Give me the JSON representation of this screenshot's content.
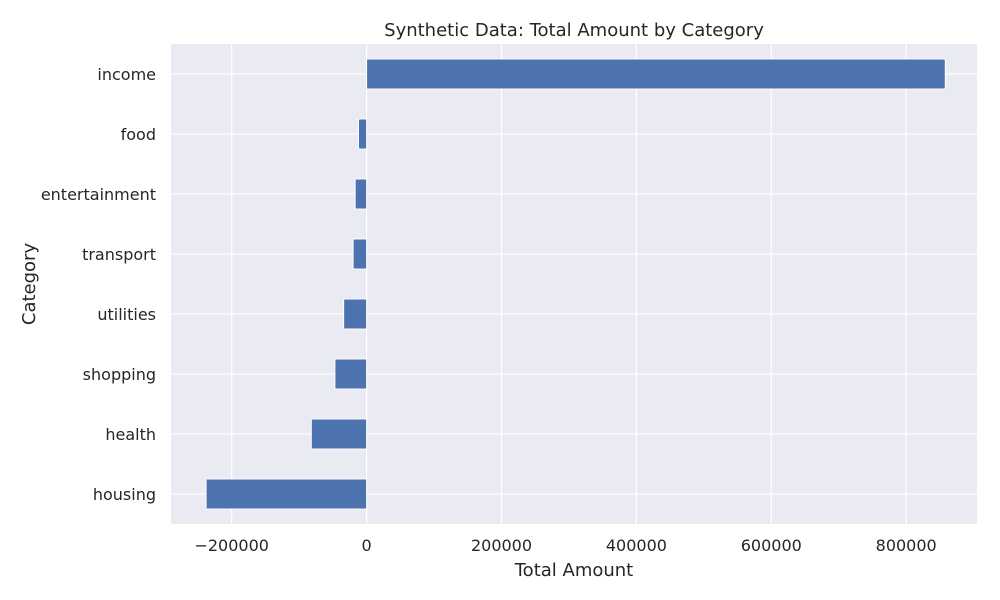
{
  "chart_data": {
    "type": "bar",
    "orientation": "horizontal",
    "title": "Synthetic Data: Total Amount by Category",
    "xlabel": "Total Amount",
    "ylabel": "Category",
    "categories": [
      "income",
      "food",
      "entertainment",
      "transport",
      "utilities",
      "shopping",
      "health",
      "housing"
    ],
    "values": [
      858000,
      -12000,
      -17000,
      -20000,
      -34000,
      -47000,
      -82000,
      -238000
    ],
    "xlim": [
      -290000,
      905000
    ],
    "xticks": [
      -200000,
      0,
      200000,
      400000,
      600000,
      800000
    ],
    "xtick_labels": [
      "−200000",
      "0",
      "200000",
      "400000",
      "600000",
      "800000"
    ],
    "grid": true,
    "colors": {
      "bar": "#4c72b0",
      "background": "#eaeaf2",
      "grid": "#ffffff"
    }
  }
}
